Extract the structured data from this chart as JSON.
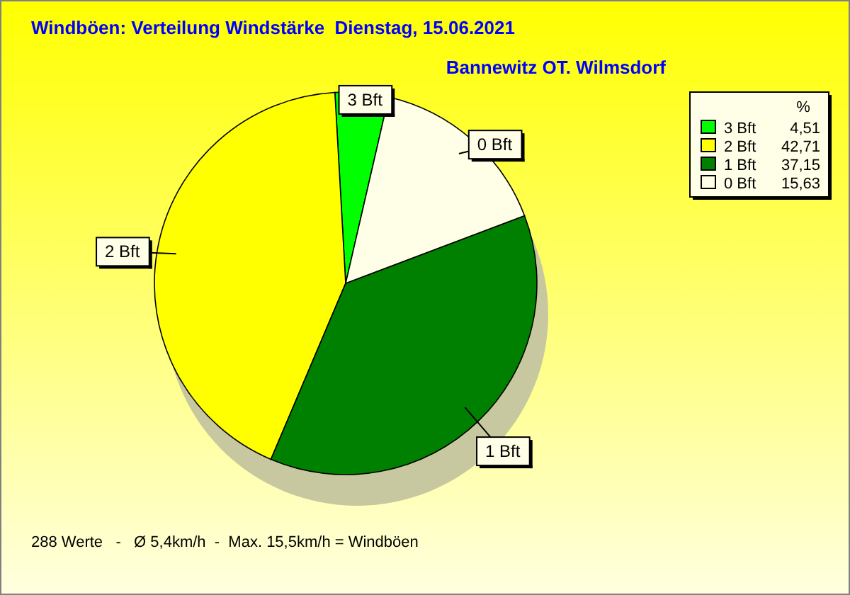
{
  "chart_data": {
    "type": "pie",
    "title": "Windböen: Verteilung Windstärke  Dienstag, 15.06.2021",
    "subtitle": "Bannewitz OT. Wilmsdorf",
    "legend_title": "%",
    "categories": [
      "3 Bft",
      "2 Bft",
      "1 Bft",
      "0 Bft"
    ],
    "values": [
      4.51,
      42.71,
      37.15,
      15.63
    ],
    "value_labels": [
      "4,51",
      "42,71",
      "37,15",
      "15,63"
    ],
    "colors": [
      "#00ff00",
      "#ffff00",
      "#008000",
      "#ffffe8"
    ],
    "legend": "top right",
    "annotations": [
      "288 Werte   -   Ø 5,4km/h  -  Max. 15,5km/h = Windböen"
    ]
  }
}
